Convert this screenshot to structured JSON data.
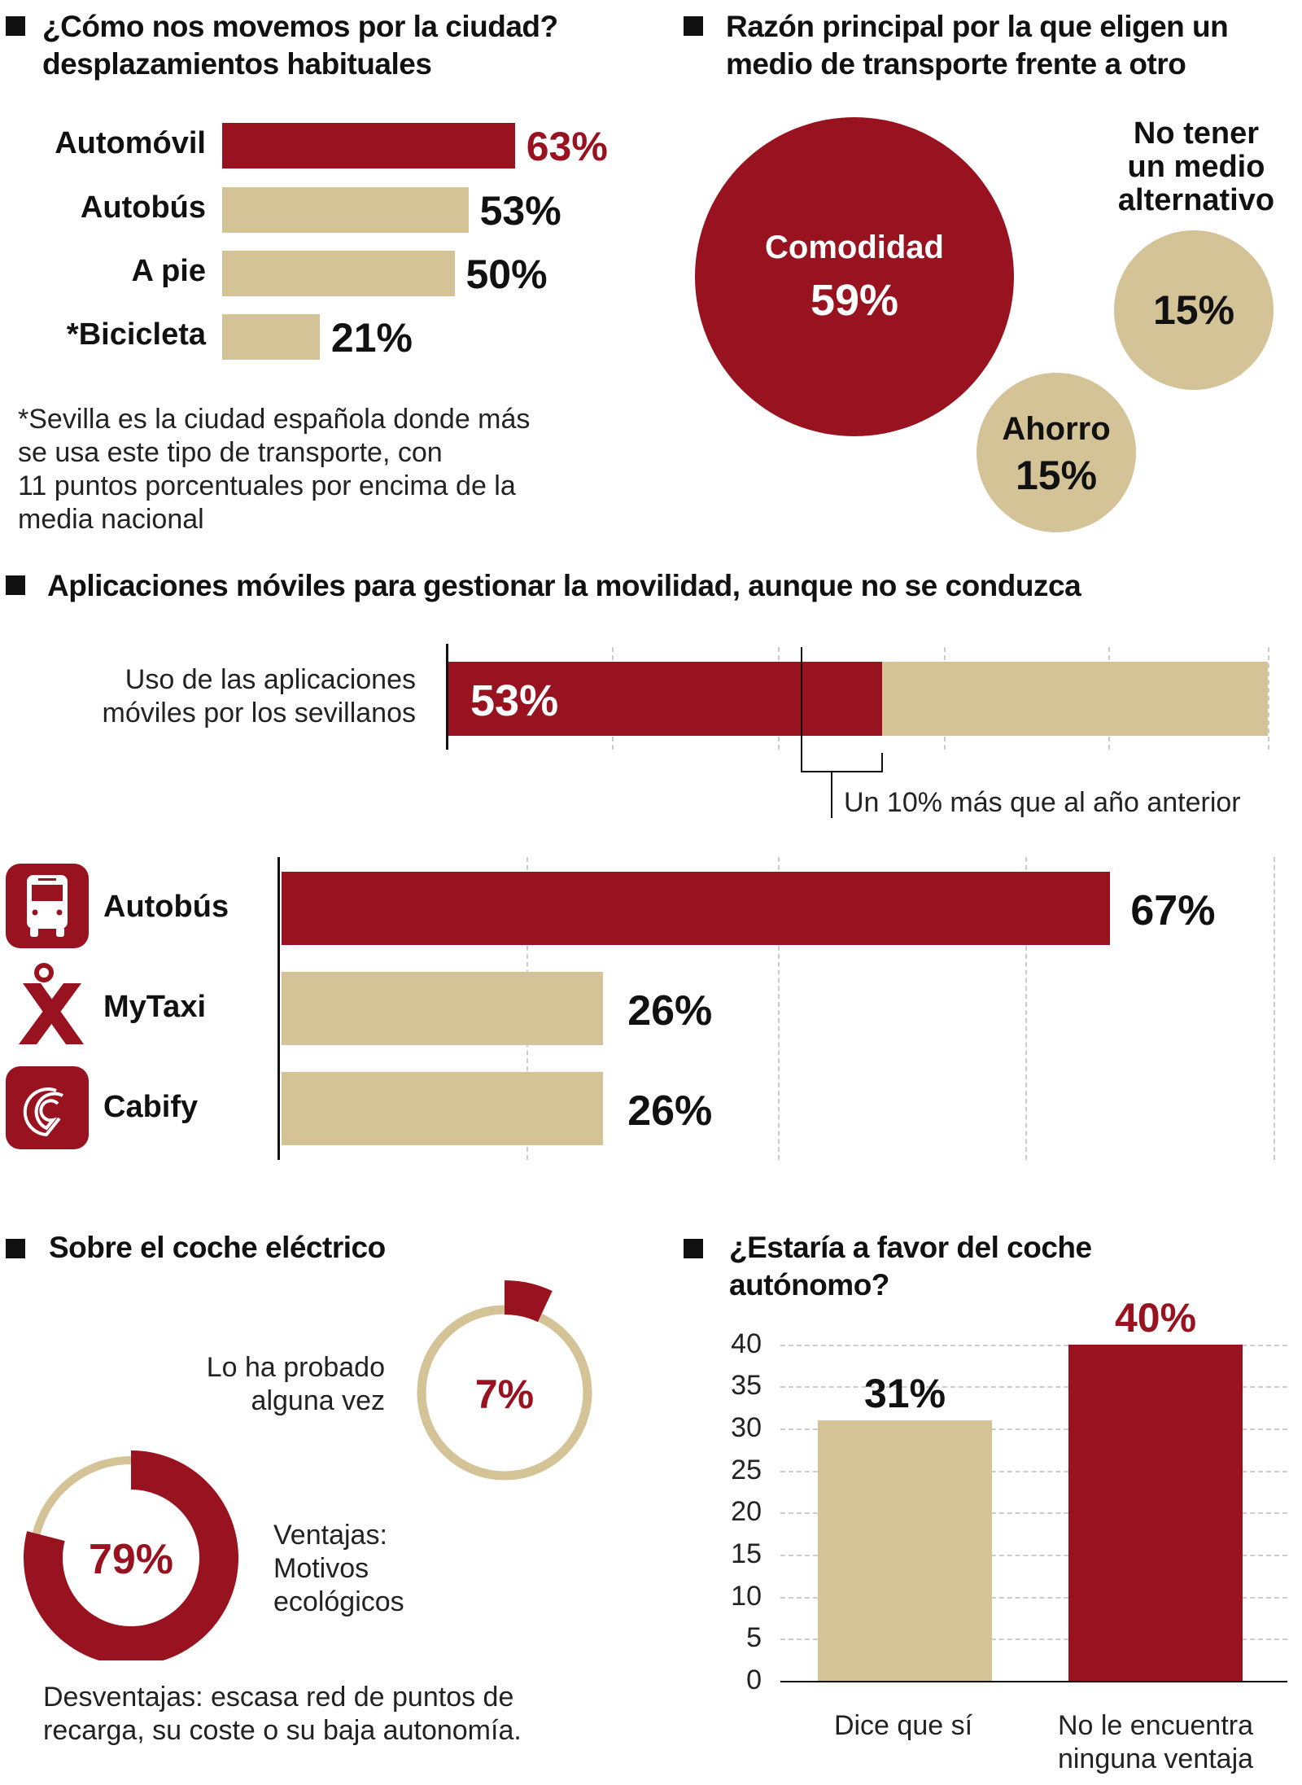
{
  "colors": {
    "accent": "#981220",
    "secondary": "#d3c397"
  },
  "chart_data": [
    {
      "type": "bar",
      "orientation": "horizontal",
      "title": "¿Cómo nos movemos por la ciudad? desplazamientos habituales",
      "categories": [
        "Automóvil",
        "Autobús",
        "A pie",
        "*Bicicleta"
      ],
      "values": [
        63,
        53,
        50,
        21
      ],
      "value_labels": [
        "63%",
        "53%",
        "50%",
        "21%"
      ],
      "footnote": "*Sevilla es la ciudad española donde más se usa este tipo de transporte, con 11 puntos porcentuales por encima de la media nacional"
    },
    {
      "type": "bubble",
      "title": "Razón principal por la que eligen un medio de transporte frente a otro",
      "categories": [
        "Comodidad",
        "No tener un medio alternativo",
        "Ahorro"
      ],
      "values": [
        59,
        15,
        15
      ],
      "value_labels": [
        "59%",
        "15%",
        "15%"
      ]
    },
    {
      "type": "bar",
      "orientation": "horizontal",
      "title": "Aplicaciones móviles para gestionar la movilidad, aunque no se conduzca",
      "categories": [
        "Uso de las aplicaciones móviles por los sevillanos"
      ],
      "values": [
        53
      ],
      "value_labels": [
        "53%"
      ],
      "annotation": "Un 10% más que al año anterior"
    },
    {
      "type": "bar",
      "orientation": "horizontal",
      "categories": [
        "Autobús",
        "MyTaxi",
        "Cabify"
      ],
      "values": [
        67,
        26,
        26
      ],
      "value_labels": [
        "67%",
        "26%",
        "26%"
      ],
      "icons": [
        "bus-icon",
        "mytaxi-logo-icon",
        "cabify-logo-icon"
      ]
    },
    {
      "type": "pie",
      "title": "Sobre el coche eléctrico",
      "categories": [
        "Lo ha probado alguna vez",
        "Ventajas: Motivos ecológicos"
      ],
      "values": [
        7,
        79
      ],
      "value_labels": [
        "7%",
        "79%"
      ],
      "footnote": "Desventajas: escasa red de puntos de recarga, su coste o su baja autonomía."
    },
    {
      "type": "bar",
      "title": "¿Estaría a favor del coche autónomo?",
      "categories": [
        "Dice que sí",
        "No le encuentra ninguna ventaja"
      ],
      "values": [
        31,
        40
      ],
      "value_labels": [
        "31%",
        "40%"
      ],
      "ylim": [
        0,
        40
      ],
      "yticks": [
        "0",
        "5",
        "10",
        "15",
        "20",
        "25",
        "30",
        "35",
        "40"
      ],
      "grid": true
    }
  ],
  "labels": {
    "s1_title_1": "¿Cómo nos movemos por la ciudad?",
    "s1_title_2": "desplazamientos habituales",
    "s1_note": [
      "*Sevilla es la ciudad española donde más",
      "se usa este tipo de transporte, con",
      "11 puntos porcentuales por encima de la",
      "media nacional"
    ],
    "s2_title_1": "Razón principal por la que eligen un",
    "s2_title_2": "medio de transporte frente a otro",
    "s2_alt": [
      "No tener",
      "un medio",
      "alternativo"
    ],
    "s3_label": [
      "Uso de las aplicaciones",
      "móviles por los sevillanos"
    ],
    "s5_title_1": "¿Estaría a favor del coche",
    "s5_title_2": "autónomo?",
    "s4_probado": [
      "Lo ha probado",
      "alguna vez"
    ],
    "s4_ventajas": [
      "Ventajas:",
      "Motivos",
      "ecológicos"
    ],
    "s4_desv": [
      "Desventajas: escasa red de puntos de",
      "recarga, su coste o su baja autonomía."
    ],
    "s6_cat2": [
      "No le encuentra",
      "ninguna ventaja"
    ]
  }
}
